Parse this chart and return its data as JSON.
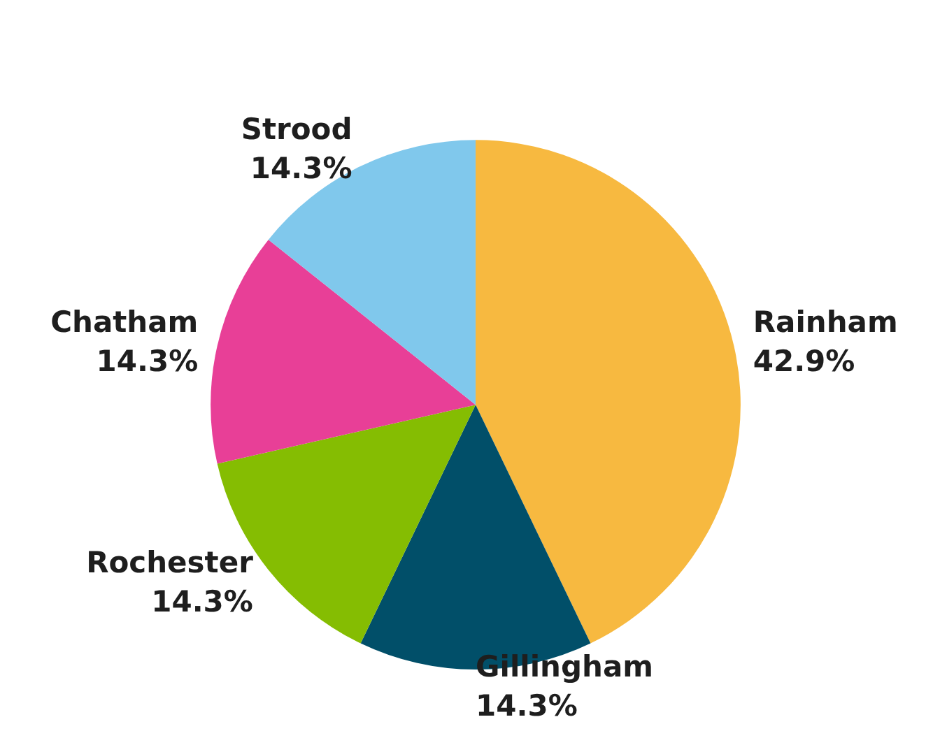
{
  "chart_data": {
    "type": "pie",
    "categories": [
      "Rainham",
      "Gillingham",
      "Rochester",
      "Chatham",
      "Strood"
    ],
    "values": [
      42.9,
      14.3,
      14.3,
      14.3,
      14.3
    ],
    "colors": [
      "#f7b940",
      "#014f69",
      "#85bd02",
      "#e83f97",
      "#80c8ec"
    ],
    "value_labels": [
      "42.9%",
      "14.3%",
      "14.3%",
      "14.3%",
      "14.3%"
    ],
    "legend": false
  }
}
